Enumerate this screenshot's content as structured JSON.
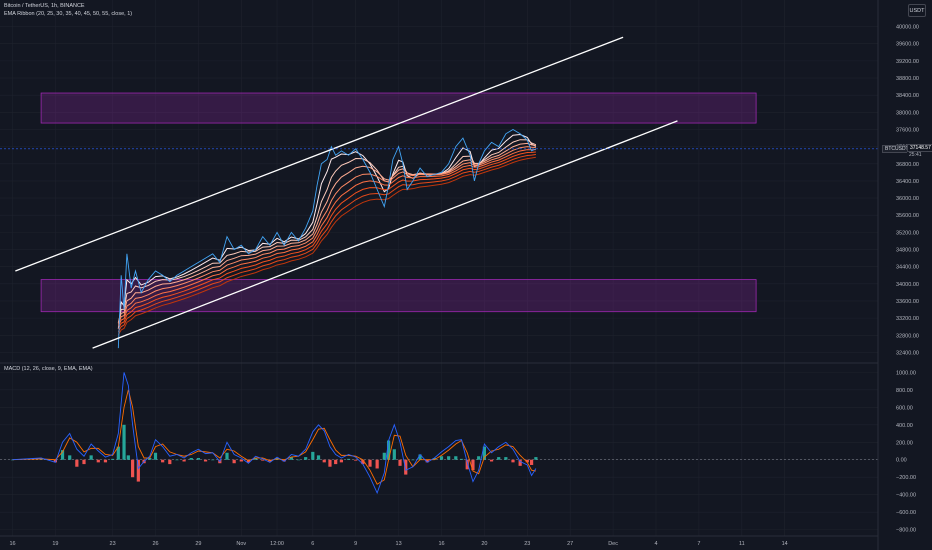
{
  "header": {
    "symbol_line": "Bitcoin / TetherUS, 1h, BINANCE",
    "ema_line": "EMA Ribbon (20, 25, 30, 35, 40, 45, 50, 55, close, 1)"
  },
  "currency_button": "USDT",
  "price_tag": {
    "symbol": "BTCUSDT",
    "price": "37148.57",
    "countdown": "25:41"
  },
  "colors": {
    "background": "#131722",
    "grid": "#1e222d",
    "price_line": "#2962ff",
    "zone_fill": "rgba(156,39,176,0.25)",
    "zone_border": "#9c27b0",
    "channel": "#ffffff",
    "macd_line": "#2962ff",
    "signal_line": "#ff6d00",
    "hist_up": "#26a69a",
    "hist_down": "#ef5350"
  },
  "macd_label": "MACD (12, 26, close, 9, EMA, EMA)",
  "chart_data": {
    "type": "line",
    "title": "Bitcoin / TetherUS, 1h, BINANCE",
    "x_ticks": [
      "16",
      "19",
      "23",
      "26",
      "29",
      "Nov",
      "12:00",
      "6",
      "9",
      "13",
      "16",
      "20",
      "23",
      "27",
      "Dec",
      "4",
      "7",
      "11",
      "14"
    ],
    "price_axis_ticks": [
      40000,
      39600,
      39200,
      38800,
      38400,
      38000,
      37600,
      37200,
      36800,
      36400,
      36000,
      35600,
      35200,
      34800,
      34400,
      34000,
      33600,
      33200,
      32800,
      32400
    ],
    "price_axis_labels": [
      "40000.00",
      "39600.00",
      "39200.00",
      "38800.00",
      "38400.00",
      "38000.00",
      "37600.00",
      "37200.00",
      "36800.00",
      "36400.00",
      "36000.00",
      "35600.00",
      "35200.00",
      "34800.00",
      "34400.00",
      "34000.00",
      "33600.00",
      "33200.00",
      "32800.00",
      "32400.00"
    ],
    "macd_axis_ticks": [
      1000,
      800,
      600,
      400,
      200,
      0,
      -200,
      -400,
      -600,
      -800
    ],
    "macd_axis_labels": [
      "1000.00",
      "800.00",
      "600.00",
      "400.00",
      "200.00",
      "0.00",
      "−200.00",
      "−400.00",
      "−600.00",
      "−800.00"
    ],
    "price_ylim": [
      32200,
      40200
    ],
    "macd_ylim": [
      -850,
      1050
    ],
    "last_price": 37148.57,
    "price_series": [
      {
        "x": 23.4,
        "y": 32500
      },
      {
        "x": 23.6,
        "y": 34200
      },
      {
        "x": 23.8,
        "y": 33400
      },
      {
        "x": 24.0,
        "y": 34700
      },
      {
        "x": 24.3,
        "y": 33900
      },
      {
        "x": 24.6,
        "y": 34300
      },
      {
        "x": 25.0,
        "y": 33800
      },
      {
        "x": 25.5,
        "y": 34100
      },
      {
        "x": 26.0,
        "y": 34300
      },
      {
        "x": 26.5,
        "y": 34200
      },
      {
        "x": 27.0,
        "y": 34050
      },
      {
        "x": 27.5,
        "y": 34200
      },
      {
        "x": 28.0,
        "y": 34300
      },
      {
        "x": 28.5,
        "y": 34400
      },
      {
        "x": 29.0,
        "y": 34500
      },
      {
        "x": 29.5,
        "y": 34600
      },
      {
        "x": 30.0,
        "y": 34700
      },
      {
        "x": 30.5,
        "y": 34500
      },
      {
        "x": 31.0,
        "y": 35100
      },
      {
        "x": 31.5,
        "y": 34800
      },
      {
        "x": 32.0,
        "y": 34900
      },
      {
        "x": 32.5,
        "y": 34700
      },
      {
        "x": 33.0,
        "y": 34800
      },
      {
        "x": 33.5,
        "y": 35100
      },
      {
        "x": 34.0,
        "y": 34900
      },
      {
        "x": 34.5,
        "y": 35200
      },
      {
        "x": 35.0,
        "y": 34900
      },
      {
        "x": 35.5,
        "y": 35200
      },
      {
        "x": 36.0,
        "y": 35000
      },
      {
        "x": 36.5,
        "y": 35300
      },
      {
        "x": 37.0,
        "y": 35700
      },
      {
        "x": 37.3,
        "y": 36300
      },
      {
        "x": 37.6,
        "y": 36800
      },
      {
        "x": 38.0,
        "y": 36900
      },
      {
        "x": 38.3,
        "y": 37200
      },
      {
        "x": 38.6,
        "y": 37000
      },
      {
        "x": 39.0,
        "y": 37100
      },
      {
        "x": 39.5,
        "y": 37000
      },
      {
        "x": 40.0,
        "y": 37150
      },
      {
        "x": 40.5,
        "y": 36900
      },
      {
        "x": 41.0,
        "y": 36600
      },
      {
        "x": 41.5,
        "y": 36200
      },
      {
        "x": 42.0,
        "y": 35800
      },
      {
        "x": 42.3,
        "y": 36300
      },
      {
        "x": 42.6,
        "y": 36900
      },
      {
        "x": 43.0,
        "y": 37200
      },
      {
        "x": 43.3,
        "y": 36800
      },
      {
        "x": 43.6,
        "y": 36200
      },
      {
        "x": 44.0,
        "y": 36400
      },
      {
        "x": 44.5,
        "y": 36700
      },
      {
        "x": 45.0,
        "y": 36500
      },
      {
        "x": 45.5,
        "y": 36550
      },
      {
        "x": 46.0,
        "y": 36600
      },
      {
        "x": 46.5,
        "y": 36800
      },
      {
        "x": 47.0,
        "y": 37200
      },
      {
        "x": 47.5,
        "y": 37400
      },
      {
        "x": 48.0,
        "y": 37000
      },
      {
        "x": 48.3,
        "y": 36400
      },
      {
        "x": 48.6,
        "y": 36800
      },
      {
        "x": 49.0,
        "y": 37100
      },
      {
        "x": 49.5,
        "y": 37300
      },
      {
        "x": 50.0,
        "y": 37200
      },
      {
        "x": 50.5,
        "y": 37500
      },
      {
        "x": 51.0,
        "y": 37600
      },
      {
        "x": 51.5,
        "y": 37500
      },
      {
        "x": 52.0,
        "y": 37350
      },
      {
        "x": 52.3,
        "y": 37100
      },
      {
        "x": 52.6,
        "y": 37150
      }
    ],
    "macd_series": [
      {
        "x": 16.0,
        "y": 0
      },
      {
        "x": 18.0,
        "y": 20
      },
      {
        "x": 19.0,
        "y": -30
      },
      {
        "x": 19.5,
        "y": 200
      },
      {
        "x": 20.0,
        "y": 300
      },
      {
        "x": 20.5,
        "y": 120
      },
      {
        "x": 21.0,
        "y": 40
      },
      {
        "x": 21.5,
        "y": 180
      },
      {
        "x": 22.0,
        "y": 100
      },
      {
        "x": 22.5,
        "y": 30
      },
      {
        "x": 23.0,
        "y": 60
      },
      {
        "x": 23.4,
        "y": 300
      },
      {
        "x": 23.8,
        "y": 1000
      },
      {
        "x": 24.1,
        "y": 850
      },
      {
        "x": 24.4,
        "y": 400
      },
      {
        "x": 24.8,
        "y": -100
      },
      {
        "x": 25.2,
        "y": -20
      },
      {
        "x": 25.6,
        "y": 40
      },
      {
        "x": 26.0,
        "y": 230
      },
      {
        "x": 26.5,
        "y": 150
      },
      {
        "x": 27.0,
        "y": 40
      },
      {
        "x": 27.5,
        "y": 60
      },
      {
        "x": 28.0,
        "y": 20
      },
      {
        "x": 28.5,
        "y": 80
      },
      {
        "x": 29.0,
        "y": 120
      },
      {
        "x": 29.5,
        "y": 70
      },
      {
        "x": 30.0,
        "y": 80
      },
      {
        "x": 30.5,
        "y": -20
      },
      {
        "x": 31.0,
        "y": 200
      },
      {
        "x": 31.5,
        "y": 60
      },
      {
        "x": 32.0,
        "y": 20
      },
      {
        "x": 32.5,
        "y": -40
      },
      {
        "x": 33.0,
        "y": 40
      },
      {
        "x": 33.5,
        "y": 10
      },
      {
        "x": 34.0,
        "y": -30
      },
      {
        "x": 34.5,
        "y": 30
      },
      {
        "x": 35.0,
        "y": -20
      },
      {
        "x": 35.5,
        "y": 60
      },
      {
        "x": 36.0,
        "y": 40
      },
      {
        "x": 36.5,
        "y": 120
      },
      {
        "x": 37.0,
        "y": 320
      },
      {
        "x": 37.4,
        "y": 400
      },
      {
        "x": 37.8,
        "y": 330
      },
      {
        "x": 38.2,
        "y": 150
      },
      {
        "x": 38.6,
        "y": 60
      },
      {
        "x": 39.0,
        "y": 20
      },
      {
        "x": 39.5,
        "y": 60
      },
      {
        "x": 40.0,
        "y": 30
      },
      {
        "x": 40.5,
        "y": -50
      },
      {
        "x": 41.0,
        "y": -200
      },
      {
        "x": 41.5,
        "y": -380
      },
      {
        "x": 42.0,
        "y": -150
      },
      {
        "x": 42.3,
        "y": 220
      },
      {
        "x": 42.7,
        "y": 400
      },
      {
        "x": 43.1,
        "y": 200
      },
      {
        "x": 43.5,
        "y": -120
      },
      {
        "x": 44.0,
        "y": -80
      },
      {
        "x": 44.5,
        "y": 60
      },
      {
        "x": 45.0,
        "y": -30
      },
      {
        "x": 45.5,
        "y": 20
      },
      {
        "x": 46.0,
        "y": 90
      },
      {
        "x": 46.5,
        "y": 150
      },
      {
        "x": 47.0,
        "y": 220
      },
      {
        "x": 47.4,
        "y": 230
      },
      {
        "x": 47.8,
        "y": -30
      },
      {
        "x": 48.2,
        "y": -250
      },
      {
        "x": 48.6,
        "y": -120
      },
      {
        "x": 49.0,
        "y": 180
      },
      {
        "x": 49.5,
        "y": 80
      },
      {
        "x": 50.0,
        "y": 150
      },
      {
        "x": 50.5,
        "y": 200
      },
      {
        "x": 51.0,
        "y": 120
      },
      {
        "x": 51.5,
        "y": -20
      },
      {
        "x": 52.0,
        "y": -60
      },
      {
        "x": 52.3,
        "y": -180
      },
      {
        "x": 52.6,
        "y": -100
      }
    ],
    "signal_series": [
      {
        "x": 16.0,
        "y": 0
      },
      {
        "x": 18.0,
        "y": 10
      },
      {
        "x": 19.0,
        "y": 0
      },
      {
        "x": 19.5,
        "y": 90
      },
      {
        "x": 20.0,
        "y": 250
      },
      {
        "x": 20.5,
        "y": 200
      },
      {
        "x": 21.0,
        "y": 90
      },
      {
        "x": 21.5,
        "y": 130
      },
      {
        "x": 22.0,
        "y": 130
      },
      {
        "x": 22.5,
        "y": 60
      },
      {
        "x": 23.0,
        "y": 50
      },
      {
        "x": 23.4,
        "y": 150
      },
      {
        "x": 23.8,
        "y": 600
      },
      {
        "x": 24.1,
        "y": 800
      },
      {
        "x": 24.4,
        "y": 600
      },
      {
        "x": 24.8,
        "y": 150
      },
      {
        "x": 25.2,
        "y": 20
      },
      {
        "x": 25.6,
        "y": 20
      },
      {
        "x": 26.0,
        "y": 150
      },
      {
        "x": 26.5,
        "y": 180
      },
      {
        "x": 27.0,
        "y": 90
      },
      {
        "x": 27.5,
        "y": 60
      },
      {
        "x": 28.0,
        "y": 40
      },
      {
        "x": 28.5,
        "y": 60
      },
      {
        "x": 29.0,
        "y": 100
      },
      {
        "x": 29.5,
        "y": 90
      },
      {
        "x": 30.0,
        "y": 80
      },
      {
        "x": 30.5,
        "y": 20
      },
      {
        "x": 31.0,
        "y": 120
      },
      {
        "x": 31.5,
        "y": 100
      },
      {
        "x": 32.0,
        "y": 40
      },
      {
        "x": 32.5,
        "y": -10
      },
      {
        "x": 33.0,
        "y": 20
      },
      {
        "x": 33.5,
        "y": 20
      },
      {
        "x": 34.0,
        "y": -10
      },
      {
        "x": 34.5,
        "y": 10
      },
      {
        "x": 35.0,
        "y": 0
      },
      {
        "x": 35.5,
        "y": 30
      },
      {
        "x": 36.0,
        "y": 40
      },
      {
        "x": 36.5,
        "y": 90
      },
      {
        "x": 37.0,
        "y": 230
      },
      {
        "x": 37.4,
        "y": 350
      },
      {
        "x": 37.8,
        "y": 360
      },
      {
        "x": 38.2,
        "y": 230
      },
      {
        "x": 38.6,
        "y": 110
      },
      {
        "x": 39.0,
        "y": 50
      },
      {
        "x": 39.5,
        "y": 50
      },
      {
        "x": 40.0,
        "y": 40
      },
      {
        "x": 40.5,
        "y": 0
      },
      {
        "x": 41.0,
        "y": -120
      },
      {
        "x": 41.5,
        "y": -280
      },
      {
        "x": 42.0,
        "y": -230
      },
      {
        "x": 42.3,
        "y": 0
      },
      {
        "x": 42.7,
        "y": 280
      },
      {
        "x": 43.1,
        "y": 270
      },
      {
        "x": 43.5,
        "y": 50
      },
      {
        "x": 44.0,
        "y": -80
      },
      {
        "x": 44.5,
        "y": 0
      },
      {
        "x": 45.0,
        "y": 0
      },
      {
        "x": 45.5,
        "y": 0
      },
      {
        "x": 46.0,
        "y": 50
      },
      {
        "x": 46.5,
        "y": 110
      },
      {
        "x": 47.0,
        "y": 180
      },
      {
        "x": 47.4,
        "y": 220
      },
      {
        "x": 47.8,
        "y": 80
      },
      {
        "x": 48.2,
        "y": -130
      },
      {
        "x": 48.6,
        "y": -160
      },
      {
        "x": 49.0,
        "y": 30
      },
      {
        "x": 49.5,
        "y": 100
      },
      {
        "x": 50.0,
        "y": 120
      },
      {
        "x": 50.5,
        "y": 170
      },
      {
        "x": 51.0,
        "y": 150
      },
      {
        "x": 51.5,
        "y": 50
      },
      {
        "x": 52.0,
        "y": -30
      },
      {
        "x": 52.3,
        "y": -120
      },
      {
        "x": 52.6,
        "y": -130
      }
    ],
    "zones": [
      {
        "name": "resistance",
        "x_from": 18.0,
        "x_to": 68.0,
        "y_from": 37750,
        "y_to": 38450
      },
      {
        "name": "support",
        "x_from": 18.0,
        "x_to": 68.0,
        "y_from": 33350,
        "y_to": 34100
      }
    ],
    "channel_lines": [
      {
        "name": "upper",
        "x1": 16.2,
        "y1": 34300,
        "x2": 58.7,
        "y2": 39750
      },
      {
        "name": "lower",
        "x1": 21.6,
        "y1": 32500,
        "x2": 62.5,
        "y2": 37800
      }
    ]
  }
}
